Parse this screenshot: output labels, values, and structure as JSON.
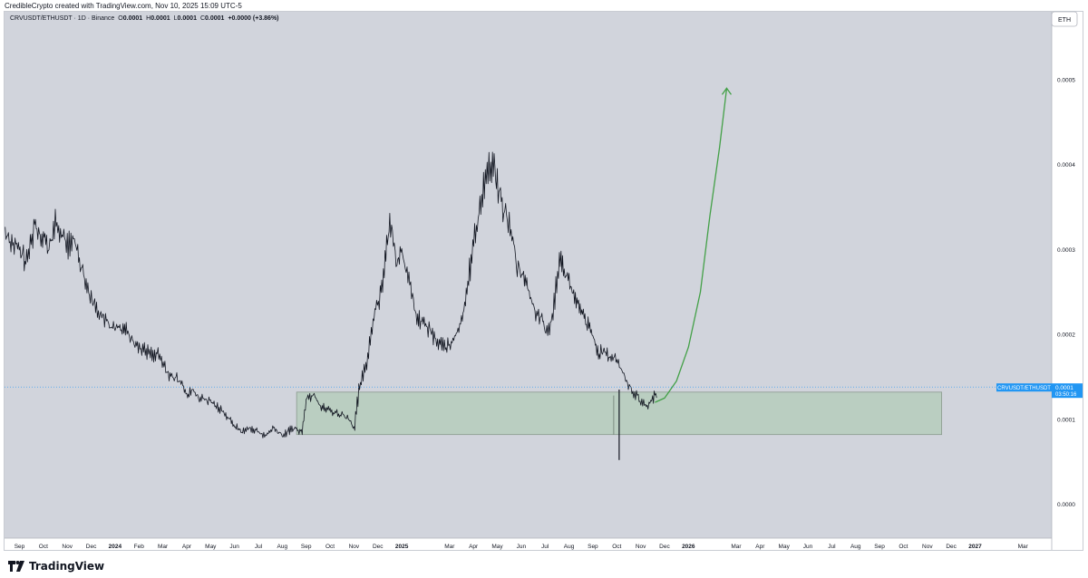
{
  "attribution": "CredibleCrypto created with TradingView.com, Nov 10, 2025 15:09 UTC-5",
  "brand": "TradingView",
  "legend": {
    "symbol": "CRVUSDT/ETHUSDT · 1D · Binance",
    "o_label": "O",
    "o_value": "0.0001",
    "h_label": "H",
    "h_value": "0.0001",
    "l_label": "L",
    "l_value": "0.0001",
    "c_label": "C",
    "c_value": "0.0001",
    "change": "+0.0000 (+3.86%)"
  },
  "currency_label": "ETH",
  "price_tag": {
    "symbol": "CRVUSDT/ETHUSDT",
    "price": "0.0001",
    "countdown": "03:50:16"
  },
  "colors": {
    "background": "#d1d4dc",
    "price_line": "#131722",
    "projection": "#43a047",
    "zone_fill": "#b6ccbc",
    "zone_stroke": "#8a9a8e",
    "last_price": "#2962ff",
    "accent": "#2196f3"
  },
  "chart_data": {
    "type": "line",
    "title": "CRVUSDT/ETHUSDT · 1D · Binance",
    "ylim": [
      -4e-05,
      0.00058
    ],
    "y_ticks": [
      "0.0000",
      "0.0001",
      "0.0002",
      "0.0003",
      "0.0004",
      "0.0005"
    ],
    "y_tick_values": [
      0,
      0.0001,
      0.0002,
      0.0003,
      0.0004,
      0.0005
    ],
    "x_ticks": [
      "Sep",
      "Oct",
      "Nov",
      "Dec",
      "2024",
      "Feb",
      "Mar",
      "Apr",
      "May",
      "Jun",
      "Jul",
      "Aug",
      "Sep",
      "Oct",
      "Nov",
      "Dec",
      "2025",
      "Mar",
      "Apr",
      "May",
      "Jun",
      "Jul",
      "Aug",
      "Sep",
      "Oct",
      "Nov",
      "Dec",
      "2026",
      "Mar",
      "Apr",
      "May",
      "Jun",
      "Jul",
      "Aug",
      "Sep",
      "Oct",
      "Nov",
      "Dec",
      "2027",
      "Mar"
    ],
    "x_tick_months": [
      0,
      1,
      2,
      3,
      4,
      5,
      6,
      7,
      8,
      9,
      10,
      11,
      12,
      13,
      14,
      15,
      16,
      18,
      19,
      20,
      21,
      22,
      23,
      24,
      25,
      26,
      27,
      28,
      30,
      31,
      32,
      33,
      34,
      35,
      36,
      37,
      38,
      39,
      40,
      42
    ],
    "x_start": "2023-09",
    "series": [
      {
        "x_months": [
          -0.6,
          0.3,
          0.6,
          1.0,
          1.2,
          1.5,
          2.0,
          2.3,
          3.0,
          3.6,
          4.0,
          4.4,
          4.8,
          5.3,
          5.8,
          6.3,
          6.8,
          7.0,
          7.2,
          7.5,
          8.0,
          8.5,
          8.9,
          9.3,
          9.6,
          10.0,
          10.3,
          10.6,
          11.0,
          11.4,
          11.8,
          12.0,
          12.3,
          12.6,
          13.0,
          13.5,
          13.8,
          14.0,
          14.2,
          14.5,
          14.8,
          15.1,
          15.5,
          15.8,
          16.0,
          16.3,
          16.6,
          17.0,
          17.5,
          18.0,
          18.5,
          18.9,
          19.2,
          19.5,
          19.8,
          20.2,
          20.5,
          20.8,
          21.1,
          21.5,
          21.8,
          22.0,
          22.3,
          22.6,
          23.0,
          23.4,
          23.8,
          24.2,
          24.6,
          25.0,
          25.3,
          25.6,
          25.9,
          26.2,
          26.5,
          26.7
        ],
        "values": [
          0.00032,
          0.000285,
          0.00033,
          0.000315,
          0.0003,
          0.00033,
          0.000305,
          0.00031,
          0.00024,
          0.000215,
          0.000205,
          0.00021,
          0.00019,
          0.00018,
          0.000175,
          0.00015,
          0.000145,
          0.000125,
          0.000135,
          0.000125,
          0.00012,
          0.00011,
          9.5e-05,
          8.5e-05,
          9e-05,
          8.5e-05,
          8e-05,
          9e-05,
          8e-05,
          9e-05,
          8.5e-05,
          0.000125,
          0.00013,
          0.000115,
          0.00011,
          0.000105,
          0.0001,
          9e-05,
          0.000135,
          0.000165,
          0.00022,
          0.00025,
          0.00033,
          0.000285,
          0.0003,
          0.00026,
          0.00022,
          0.00021,
          0.00019,
          0.000185,
          0.000215,
          0.00029,
          0.00034,
          0.00039,
          0.0004,
          0.00035,
          0.00033,
          0.00028,
          0.00027,
          0.00023,
          0.00022,
          0.0002,
          0.00022,
          0.000295,
          0.00026,
          0.00023,
          0.00021,
          0.00018,
          0.000175,
          0.00017,
          0.00015,
          0.000135,
          0.000125,
          0.000115,
          0.000125,
          0.00013
        ]
      }
    ],
    "projection": {
      "x_months": [
        26.6,
        27.0,
        27.5,
        28.0,
        28.5,
        28.9,
        29.3,
        29.6
      ],
      "values": [
        0.00012,
        0.000125,
        0.000145,
        0.000185,
        0.00025,
        0.00034,
        0.00042,
        0.00049
      ]
    },
    "zone": {
      "x_from": 11.6,
      "x_to": 38.6,
      "y_from": 8.2e-05,
      "y_to": 0.000132
    },
    "wick": {
      "x": 25.1,
      "y_from": 0.000135,
      "y_to": 5.2e-05
    },
    "last_price": 0.000138
  }
}
